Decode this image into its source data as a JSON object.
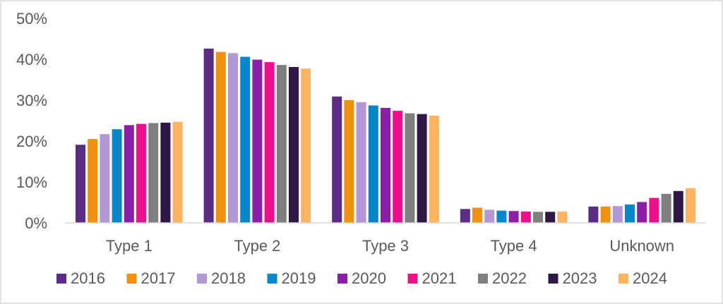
{
  "chart_data": {
    "type": "bar",
    "title": "",
    "xlabel": "",
    "ylabel": "",
    "ylim": [
      0,
      50
    ],
    "y_ticks": [
      0,
      10,
      20,
      30,
      40,
      50
    ],
    "y_tick_labels": [
      "0%",
      "10%",
      "20%",
      "30%",
      "40%",
      "50%"
    ],
    "grid": false,
    "legend_position": "bottom",
    "categories": [
      "Type 1",
      "Type 2",
      "Type 3",
      "Type 4",
      "Unknown"
    ],
    "series": [
      {
        "name": "2016",
        "color": "#5b2c83",
        "values": [
          19.1,
          42.6,
          30.9,
          3.4,
          4.0
        ]
      },
      {
        "name": "2017",
        "color": "#f0900c",
        "values": [
          20.5,
          41.8,
          30.0,
          3.7,
          4.0
        ]
      },
      {
        "name": "2018",
        "color": "#b497d6",
        "values": [
          21.7,
          41.5,
          29.5,
          3.2,
          4.1
        ]
      },
      {
        "name": "2019",
        "color": "#0786c8",
        "values": [
          22.9,
          40.6,
          28.7,
          3.0,
          4.5
        ]
      },
      {
        "name": "2020",
        "color": "#8b1fa6",
        "values": [
          23.9,
          39.9,
          28.1,
          2.9,
          5.1
        ]
      },
      {
        "name": "2021",
        "color": "#ee0f8a",
        "values": [
          24.2,
          39.3,
          27.4,
          2.8,
          6.1
        ]
      },
      {
        "name": "2022",
        "color": "#7f7f7f",
        "values": [
          24.4,
          38.6,
          26.8,
          2.7,
          7.1
        ]
      },
      {
        "name": "2023",
        "color": "#2f1846",
        "values": [
          24.5,
          38.1,
          26.6,
          2.7,
          7.8
        ]
      },
      {
        "name": "2024",
        "color": "#fdb462",
        "values": [
          24.7,
          37.7,
          26.2,
          2.8,
          8.5
        ]
      }
    ]
  }
}
